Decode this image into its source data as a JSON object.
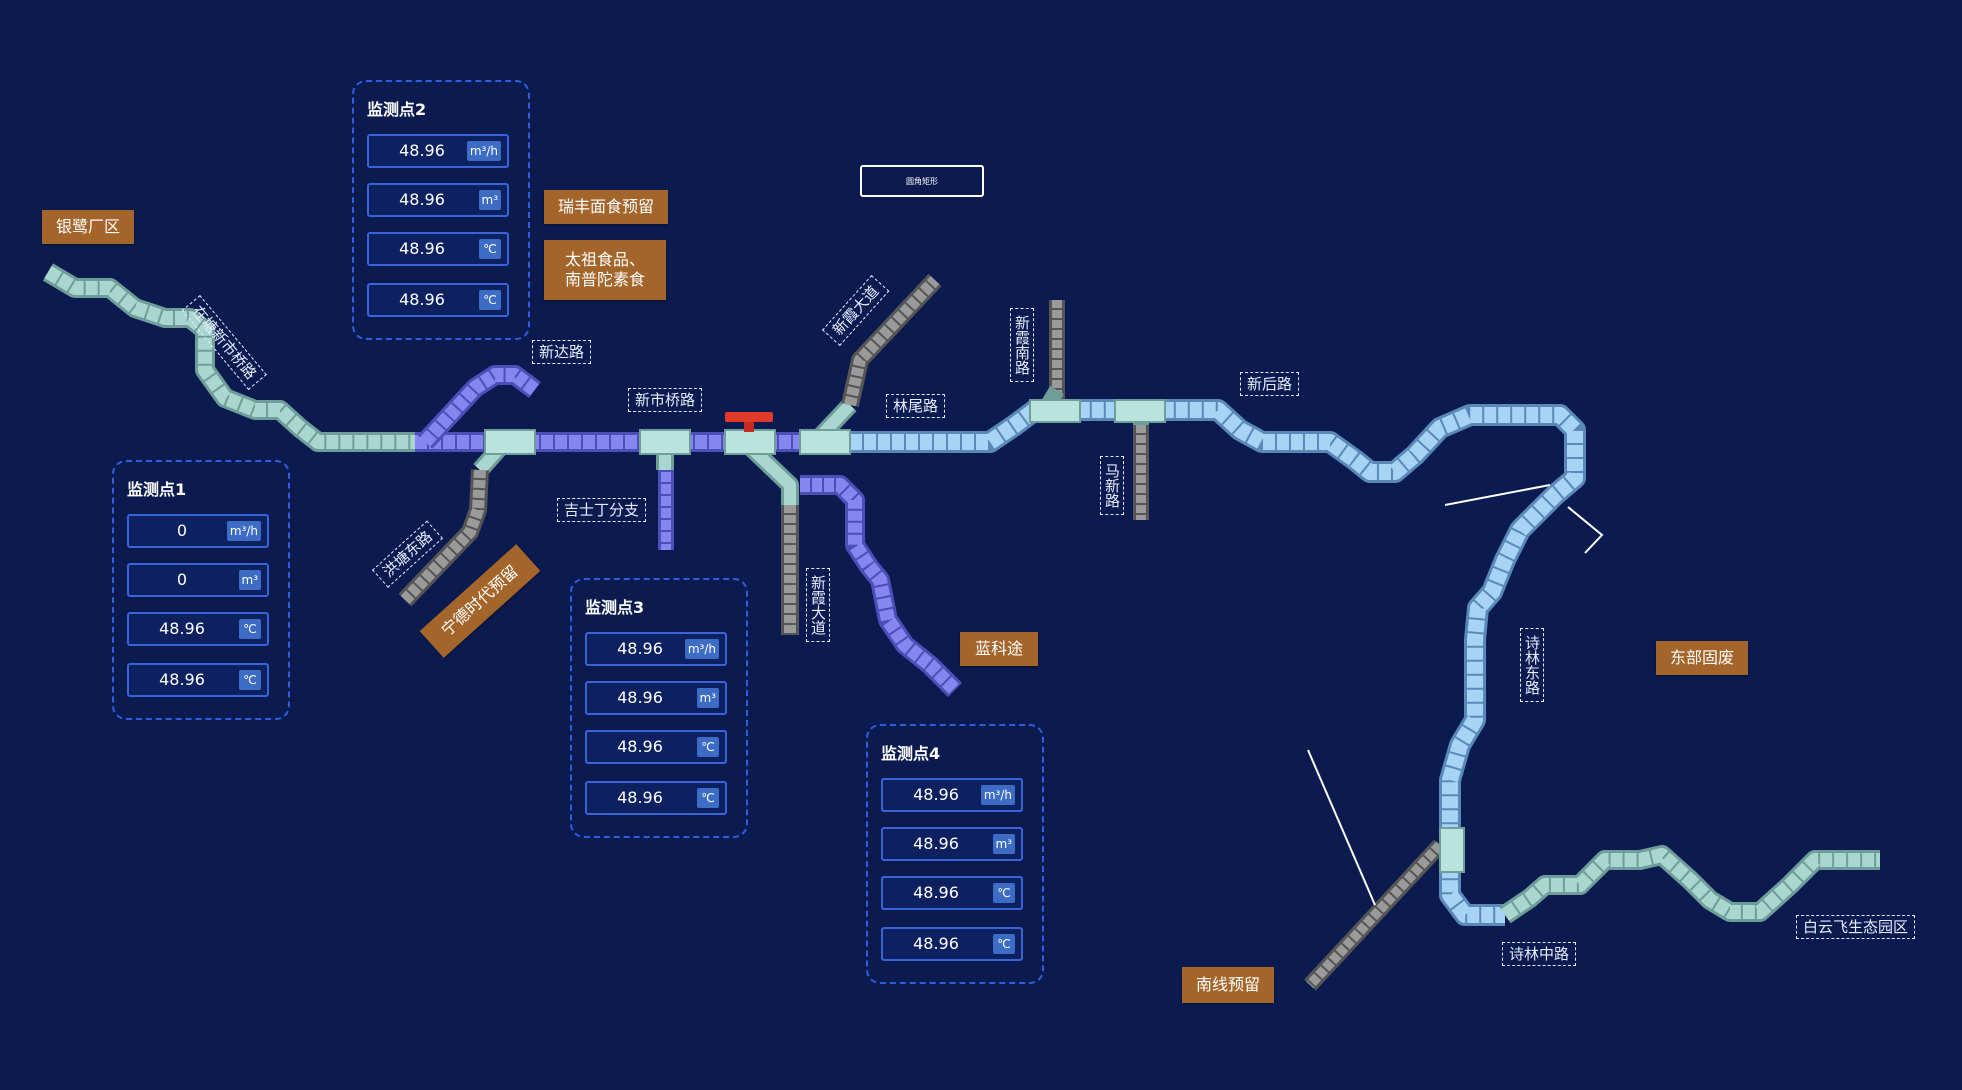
{
  "tags": {
    "yinlu": "银鹭厂区",
    "ruifeng": "瑞丰面食预留",
    "taizu": "太祖食品、\n南普陀素食",
    "ningde": "宁德时代预留",
    "lankt": "蓝科途",
    "dongbu": "东部固废",
    "nanxian": "南线预留"
  },
  "roads": {
    "zaidang": "在塘新市桥路",
    "xinda": "新达路",
    "xinshiqiao": "新市桥路",
    "hongtang": "洪塘东路",
    "jishiding": "吉士丁分支",
    "xinsu_up": "新霞大道",
    "linwei": "林尾路",
    "xinxia_nan": "新霞南路",
    "maxin": "马新路",
    "xinhou": "新后路",
    "xinsu_down": "新霞大道",
    "shilin_dong": "诗林东路",
    "shilin_zhong": "诗林中路",
    "baiyun": "白云飞生态园区"
  },
  "rect_button": "圆角矩形",
  "colors": {
    "background": "#0b1b4f",
    "tag": "#a4652a",
    "pipe_teal": "#9fcfc9",
    "pipe_purple": "#7c7fe6",
    "pipe_blue": "#8fc4ee",
    "pipe_gray": "#8a8a8a",
    "valve": "#e03a2a"
  },
  "monitors": [
    {
      "title": "监测点1",
      "rows": [
        {
          "value": "0",
          "unit": "m³/h"
        },
        {
          "value": "0",
          "unit": "m³"
        },
        {
          "value": "48.96",
          "unit": "℃"
        },
        {
          "value": "48.96",
          "unit": "℃"
        }
      ]
    },
    {
      "title": "监测点2",
      "rows": [
        {
          "value": "48.96",
          "unit": "m³/h"
        },
        {
          "value": "48.96",
          "unit": "m³"
        },
        {
          "value": "48.96",
          "unit": "℃"
        },
        {
          "value": "48.96",
          "unit": "℃"
        }
      ]
    },
    {
      "title": "监测点3",
      "rows": [
        {
          "value": "48.96",
          "unit": "m³/h"
        },
        {
          "value": "48.96",
          "unit": "m³"
        },
        {
          "value": "48.96",
          "unit": "℃"
        },
        {
          "value": "48.96",
          "unit": "℃"
        }
      ]
    },
    {
      "title": "监测点4",
      "rows": [
        {
          "value": "48.96",
          "unit": "m³/h"
        },
        {
          "value": "48.96",
          "unit": "m³"
        },
        {
          "value": "48.96",
          "unit": "℃"
        },
        {
          "value": "48.96",
          "unit": "℃"
        }
      ]
    }
  ]
}
